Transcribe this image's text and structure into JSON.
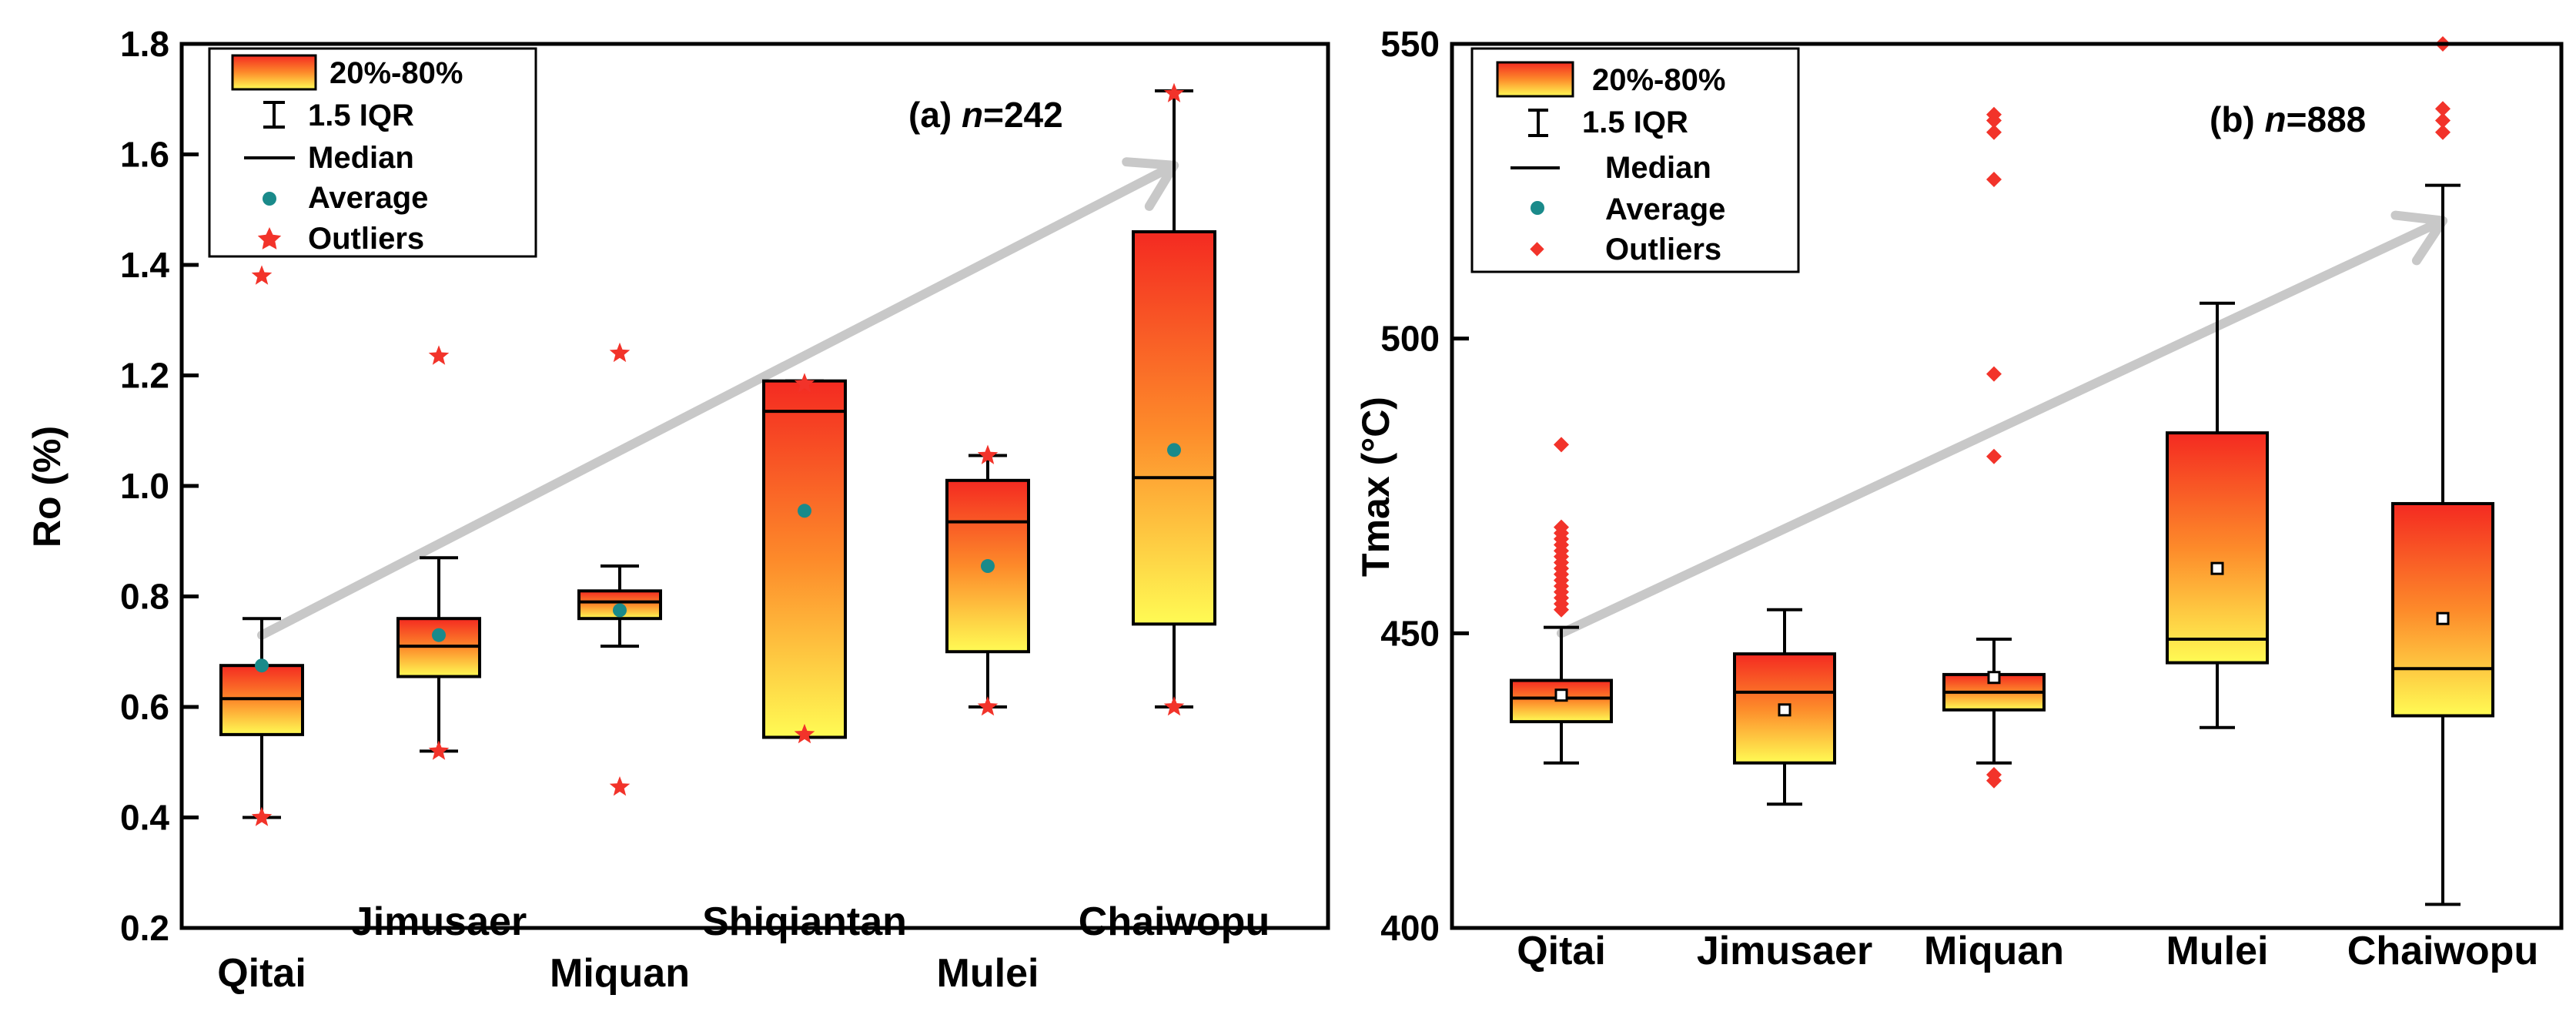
{
  "chart_data": [
    {
      "type": "box",
      "ylabel": "Ro (%)",
      "ylim": [
        0.2,
        1.8
      ],
      "yticks": [
        0.2,
        0.4,
        0.6,
        0.8,
        1.0,
        1.2,
        1.4,
        1.6,
        1.8
      ],
      "ytick_labels": [
        "0.2",
        "0.4",
        "0.6",
        "0.8",
        "1.0",
        "1.2",
        "1.4",
        "1.6",
        "1.8"
      ],
      "categories": [
        "Qitai",
        "Jimusaer",
        "Miquan",
        "Shiqiantan",
        "Mulei",
        "Chaiwopu"
      ],
      "annotation": {
        "prefix": "(a) ",
        "italic": "n",
        "suffix": "=242"
      },
      "trend": {
        "from": [
          0,
          0.73
        ],
        "to": [
          5,
          1.58
        ]
      },
      "outlier_marker": "star",
      "mean_marker": "dot",
      "boxes": [
        {
          "whisker_low": 0.4,
          "q1": 0.55,
          "median": 0.615,
          "q3": 0.675,
          "whisker_high": 0.76,
          "mean": 0.675,
          "outliers": [
            0.4,
            1.38
          ]
        },
        {
          "whisker_low": 0.52,
          "q1": 0.655,
          "median": 0.71,
          "q3": 0.76,
          "whisker_high": 0.87,
          "mean": 0.73,
          "outliers": [
            0.52,
            1.235
          ]
        },
        {
          "whisker_low": 0.71,
          "q1": 0.76,
          "median": 0.79,
          "q3": 0.81,
          "whisker_high": 0.855,
          "mean": 0.775,
          "outliers": [
            0.455,
            1.24
          ]
        },
        {
          "whisker_low": 0.545,
          "q1": 0.545,
          "median": 1.135,
          "q3": 1.19,
          "whisker_high": 1.19,
          "mean": 0.955,
          "outliers": [
            0.55,
            1.185
          ]
        },
        {
          "whisker_low": 0.6,
          "q1": 0.7,
          "median": 0.935,
          "q3": 1.01,
          "whisker_high": 1.055,
          "mean": 0.855,
          "outliers": [
            0.6,
            1.055
          ]
        },
        {
          "whisker_low": 0.6,
          "q1": 0.75,
          "median": 1.015,
          "q3": 1.46,
          "whisker_high": 1.715,
          "mean": 1.065,
          "outliers": [
            0.6,
            1.71
          ]
        }
      ]
    },
    {
      "type": "box",
      "ylabel": "Tmax (°C)",
      "ylim": [
        400,
        550
      ],
      "yticks": [
        400,
        450,
        500,
        550
      ],
      "ytick_labels": [
        "400",
        "450",
        "500",
        "550"
      ],
      "categories": [
        "Qitai",
        "Jimusaer",
        "Miquan",
        "Mulei",
        "Chaiwopu"
      ],
      "annotation": {
        "prefix": "(b) ",
        "italic": "n",
        "suffix": "=888"
      },
      "trend": {
        "from": [
          0,
          450
        ],
        "to": [
          4,
          520
        ]
      },
      "outlier_marker": "diamond",
      "mean_marker": "square",
      "boxes": [
        {
          "whisker_low": 428,
          "q1": 435,
          "median": 439,
          "q3": 442,
          "whisker_high": 451,
          "mean": 439.5,
          "outliers": [
            454,
            455,
            456,
            457,
            458,
            459,
            460,
            461,
            462,
            463,
            464,
            465,
            466,
            467,
            468,
            482
          ]
        },
        {
          "whisker_low": 421,
          "q1": 428,
          "median": 440,
          "q3": 446.5,
          "whisker_high": 454,
          "mean": 437,
          "outliers": []
        },
        {
          "whisker_low": 428,
          "q1": 437,
          "median": 440,
          "q3": 443,
          "whisker_high": 449,
          "mean": 442.5,
          "outliers": [
            425,
            426,
            480,
            494,
            527,
            535,
            537,
            538
          ]
        },
        {
          "whisker_low": 434,
          "q1": 445,
          "median": 449,
          "q3": 484,
          "whisker_high": 506,
          "mean": 461,
          "outliers": []
        },
        {
          "whisker_low": 404,
          "q1": 436,
          "median": 444,
          "q3": 472,
          "whisker_high": 526,
          "mean": 452.5,
          "outliers": [
            535,
            537,
            539,
            550
          ]
        }
      ]
    }
  ],
  "legend": {
    "items": [
      "20%-80%",
      "1.5 IQR",
      "Median",
      "Average",
      "Outliers"
    ]
  },
  "colors": {
    "box_top": "#f42a21",
    "box_mid": "#fd8a2a",
    "box_bottom": "#fffb54",
    "outlier": "#f2332a",
    "mean_dot": "#1a8a8a",
    "trend_arrow": "#c8c8c8",
    "axis": "#000000"
  }
}
